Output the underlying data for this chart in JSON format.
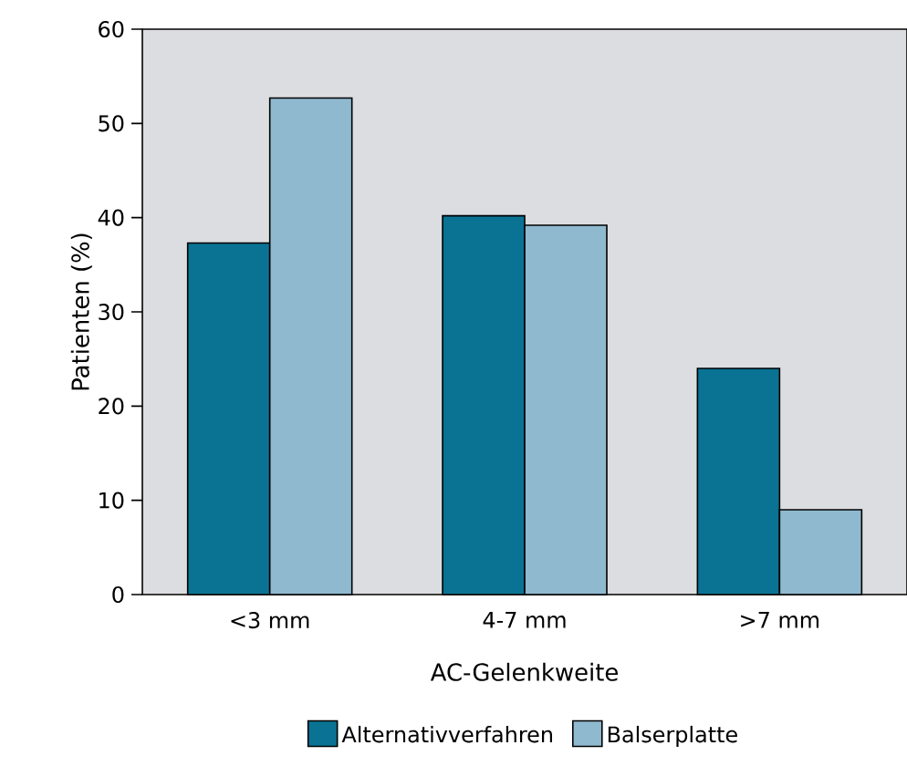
{
  "chart_data": {
    "type": "bar",
    "xlabel": "AC-Gelenkweite",
    "ylabel": "Patienten (%)",
    "categories": [
      "<3 mm",
      "4-7 mm",
      ">7 mm"
    ],
    "series": [
      {
        "name": "Alternativverfahren",
        "color": "#0a7394",
        "values": [
          37.3,
          40.2,
          24.0
        ]
      },
      {
        "name": "Balserplatte",
        "color": "#8fb9cf",
        "values": [
          52.7,
          39.2,
          9.0
        ]
      }
    ],
    "ylim": [
      0,
      60
    ],
    "yticks": [
      0,
      10,
      20,
      30,
      40,
      50,
      60
    ],
    "legend": "bottom",
    "grid": false
  }
}
